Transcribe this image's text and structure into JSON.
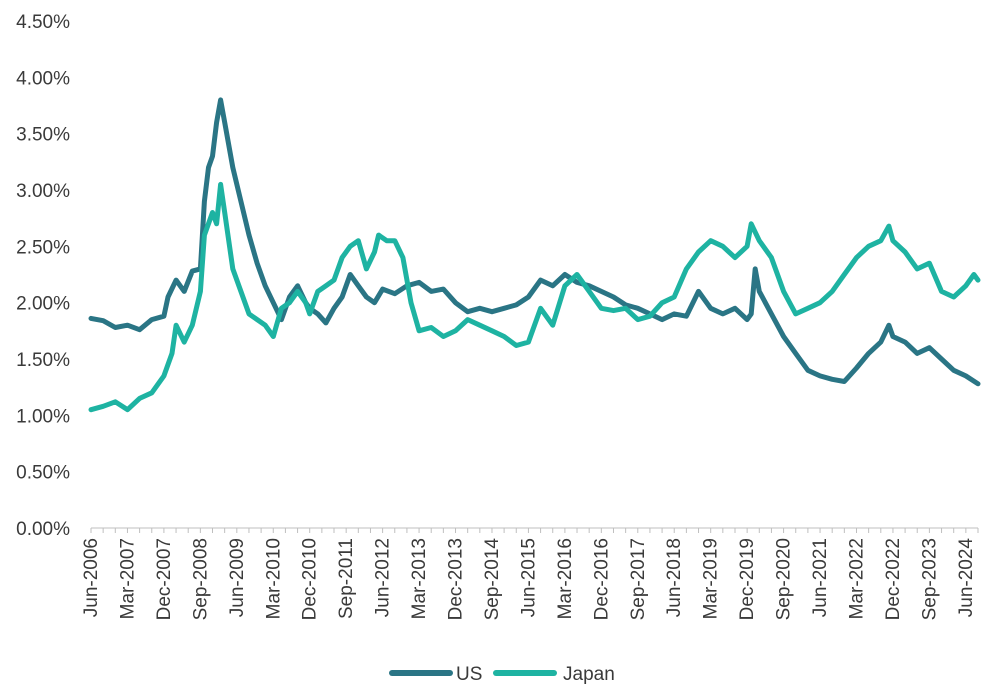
{
  "chart_data": {
    "type": "line",
    "title": "",
    "xlabel": "",
    "ylabel": "",
    "ylim": [
      0,
      4.5
    ],
    "y_ticks": [
      "0.00%",
      "0.50%",
      "1.00%",
      "1.50%",
      "2.00%",
      "2.50%",
      "3.00%",
      "3.50%",
      "4.00%",
      "4.50%"
    ],
    "x_range": [
      "Jun-2006",
      "Sep-2024"
    ],
    "x_ticks": [
      "Jun-2006",
      "Mar-2007",
      "Dec-2007",
      "Sep-2008",
      "Jun-2009",
      "Mar-2010",
      "Dec-2010",
      "Sep-2011",
      "Jun-2012",
      "Mar-2013",
      "Dec-2013",
      "Sep-2014",
      "Jun-2015",
      "Mar-2016",
      "Dec-2016",
      "Sep-2017",
      "Jun-2018",
      "Mar-2019",
      "Dec-2019",
      "Sep-2020",
      "Jun-2021",
      "Mar-2022",
      "Dec-2022",
      "Sep-2023",
      "Jun-2024"
    ],
    "grid": false,
    "legend_position": "bottom-center",
    "series": [
      {
        "name": "US",
        "color": "#2a7585",
        "points": [
          [
            "2006-06",
            1.86
          ],
          [
            "2006-09",
            1.84
          ],
          [
            "2006-12",
            1.78
          ],
          [
            "2007-03",
            1.8
          ],
          [
            "2007-06",
            1.76
          ],
          [
            "2007-09",
            1.85
          ],
          [
            "2007-12",
            1.88
          ],
          [
            "2008-01",
            2.05
          ],
          [
            "2008-03",
            2.2
          ],
          [
            "2008-05",
            2.1
          ],
          [
            "2008-07",
            2.28
          ],
          [
            "2008-09",
            2.3
          ],
          [
            "2008-10",
            2.9
          ],
          [
            "2008-11",
            3.2
          ],
          [
            "2008-12",
            3.3
          ],
          [
            "2009-01",
            3.6
          ],
          [
            "2009-02",
            3.8
          ],
          [
            "2009-03",
            3.6
          ],
          [
            "2009-05",
            3.2
          ],
          [
            "2009-07",
            2.9
          ],
          [
            "2009-09",
            2.6
          ],
          [
            "2009-11",
            2.35
          ],
          [
            "2010-01",
            2.15
          ],
          [
            "2010-03",
            2.0
          ],
          [
            "2010-05",
            1.85
          ],
          [
            "2010-07",
            2.05
          ],
          [
            "2010-09",
            2.15
          ],
          [
            "2010-11",
            2.0
          ],
          [
            "2010-12",
            1.95
          ],
          [
            "2011-02",
            1.9
          ],
          [
            "2011-04",
            1.82
          ],
          [
            "2011-06",
            1.95
          ],
          [
            "2011-08",
            2.05
          ],
          [
            "2011-10",
            2.25
          ],
          [
            "2011-12",
            2.15
          ],
          [
            "2012-02",
            2.05
          ],
          [
            "2012-04",
            2.0
          ],
          [
            "2012-06",
            2.12
          ],
          [
            "2012-09",
            2.08
          ],
          [
            "2012-12",
            2.15
          ],
          [
            "2013-03",
            2.18
          ],
          [
            "2013-06",
            2.1
          ],
          [
            "2013-09",
            2.12
          ],
          [
            "2013-12",
            2.0
          ],
          [
            "2014-03",
            1.92
          ],
          [
            "2014-06",
            1.95
          ],
          [
            "2014-09",
            1.92
          ],
          [
            "2014-12",
            1.95
          ],
          [
            "2015-03",
            1.98
          ],
          [
            "2015-06",
            2.05
          ],
          [
            "2015-09",
            2.2
          ],
          [
            "2015-12",
            2.15
          ],
          [
            "2016-03",
            2.25
          ],
          [
            "2016-06",
            2.18
          ],
          [
            "2016-09",
            2.15
          ],
          [
            "2016-12",
            2.1
          ],
          [
            "2017-03",
            2.05
          ],
          [
            "2017-06",
            1.98
          ],
          [
            "2017-09",
            1.95
          ],
          [
            "2017-12",
            1.9
          ],
          [
            "2018-03",
            1.85
          ],
          [
            "2018-06",
            1.9
          ],
          [
            "2018-09",
            1.88
          ],
          [
            "2018-12",
            2.1
          ],
          [
            "2019-03",
            1.95
          ],
          [
            "2019-06",
            1.9
          ],
          [
            "2019-09",
            1.95
          ],
          [
            "2019-12",
            1.85
          ],
          [
            "2020-01",
            1.9
          ],
          [
            "2020-02",
            2.3
          ],
          [
            "2020-03",
            2.1
          ],
          [
            "2020-06",
            1.9
          ],
          [
            "2020-09",
            1.7
          ],
          [
            "2020-12",
            1.55
          ],
          [
            "2021-03",
            1.4
          ],
          [
            "2021-06",
            1.35
          ],
          [
            "2021-09",
            1.32
          ],
          [
            "2021-12",
            1.3
          ],
          [
            "2022-03",
            1.42
          ],
          [
            "2022-06",
            1.55
          ],
          [
            "2022-09",
            1.65
          ],
          [
            "2022-11",
            1.8
          ],
          [
            "2022-12",
            1.7
          ],
          [
            "2023-03",
            1.65
          ],
          [
            "2023-06",
            1.55
          ],
          [
            "2023-09",
            1.6
          ],
          [
            "2023-12",
            1.5
          ],
          [
            "2024-03",
            1.4
          ],
          [
            "2024-06",
            1.35
          ],
          [
            "2024-09",
            1.28
          ]
        ]
      },
      {
        "name": "Japan",
        "color": "#1eb3a2",
        "points": [
          [
            "2006-06",
            1.05
          ],
          [
            "2006-09",
            1.08
          ],
          [
            "2006-12",
            1.12
          ],
          [
            "2007-03",
            1.05
          ],
          [
            "2007-06",
            1.15
          ],
          [
            "2007-09",
            1.2
          ],
          [
            "2007-12",
            1.35
          ],
          [
            "2008-02",
            1.55
          ],
          [
            "2008-03",
            1.8
          ],
          [
            "2008-05",
            1.65
          ],
          [
            "2008-07",
            1.8
          ],
          [
            "2008-09",
            2.1
          ],
          [
            "2008-10",
            2.6
          ],
          [
            "2008-12",
            2.8
          ],
          [
            "2009-01",
            2.7
          ],
          [
            "2009-02",
            3.05
          ],
          [
            "2009-03",
            2.8
          ],
          [
            "2009-05",
            2.3
          ],
          [
            "2009-07",
            2.1
          ],
          [
            "2009-09",
            1.9
          ],
          [
            "2009-11",
            1.85
          ],
          [
            "2010-01",
            1.8
          ],
          [
            "2010-03",
            1.7
          ],
          [
            "2010-05",
            1.95
          ],
          [
            "2010-07",
            2.0
          ],
          [
            "2010-09",
            2.1
          ],
          [
            "2010-11",
            2.0
          ],
          [
            "2010-12",
            1.9
          ],
          [
            "2011-02",
            2.1
          ],
          [
            "2011-04",
            2.15
          ],
          [
            "2011-06",
            2.2
          ],
          [
            "2011-08",
            2.4
          ],
          [
            "2011-10",
            2.5
          ],
          [
            "2011-12",
            2.55
          ],
          [
            "2012-02",
            2.3
          ],
          [
            "2012-04",
            2.45
          ],
          [
            "2012-05",
            2.6
          ],
          [
            "2012-07",
            2.55
          ],
          [
            "2012-09",
            2.55
          ],
          [
            "2012-11",
            2.4
          ],
          [
            "2013-01",
            2.0
          ],
          [
            "2013-03",
            1.75
          ],
          [
            "2013-06",
            1.78
          ],
          [
            "2013-09",
            1.7
          ],
          [
            "2013-12",
            1.75
          ],
          [
            "2014-03",
            1.85
          ],
          [
            "2014-06",
            1.8
          ],
          [
            "2014-09",
            1.75
          ],
          [
            "2014-12",
            1.7
          ],
          [
            "2015-03",
            1.62
          ],
          [
            "2015-06",
            1.65
          ],
          [
            "2015-09",
            1.95
          ],
          [
            "2015-12",
            1.8
          ],
          [
            "2016-03",
            2.15
          ],
          [
            "2016-06",
            2.25
          ],
          [
            "2016-09",
            2.1
          ],
          [
            "2016-12",
            1.95
          ],
          [
            "2017-03",
            1.93
          ],
          [
            "2017-06",
            1.95
          ],
          [
            "2017-09",
            1.85
          ],
          [
            "2017-12",
            1.88
          ],
          [
            "2018-03",
            2.0
          ],
          [
            "2018-06",
            2.05
          ],
          [
            "2018-09",
            2.3
          ],
          [
            "2018-12",
            2.45
          ],
          [
            "2019-03",
            2.55
          ],
          [
            "2019-06",
            2.5
          ],
          [
            "2019-09",
            2.4
          ],
          [
            "2019-12",
            2.5
          ],
          [
            "2020-01",
            2.7
          ],
          [
            "2020-03",
            2.55
          ],
          [
            "2020-06",
            2.4
          ],
          [
            "2020-09",
            2.1
          ],
          [
            "2020-12",
            1.9
          ],
          [
            "2021-03",
            1.95
          ],
          [
            "2021-06",
            2.0
          ],
          [
            "2021-09",
            2.1
          ],
          [
            "2021-12",
            2.25
          ],
          [
            "2022-03",
            2.4
          ],
          [
            "2022-06",
            2.5
          ],
          [
            "2022-09",
            2.55
          ],
          [
            "2022-11",
            2.68
          ],
          [
            "2022-12",
            2.55
          ],
          [
            "2023-03",
            2.45
          ],
          [
            "2023-06",
            2.3
          ],
          [
            "2023-09",
            2.35
          ],
          [
            "2023-12",
            2.1
          ],
          [
            "2024-03",
            2.05
          ],
          [
            "2024-06",
            2.15
          ],
          [
            "2024-08",
            2.25
          ],
          [
            "2024-09",
            2.2
          ]
        ]
      }
    ]
  }
}
